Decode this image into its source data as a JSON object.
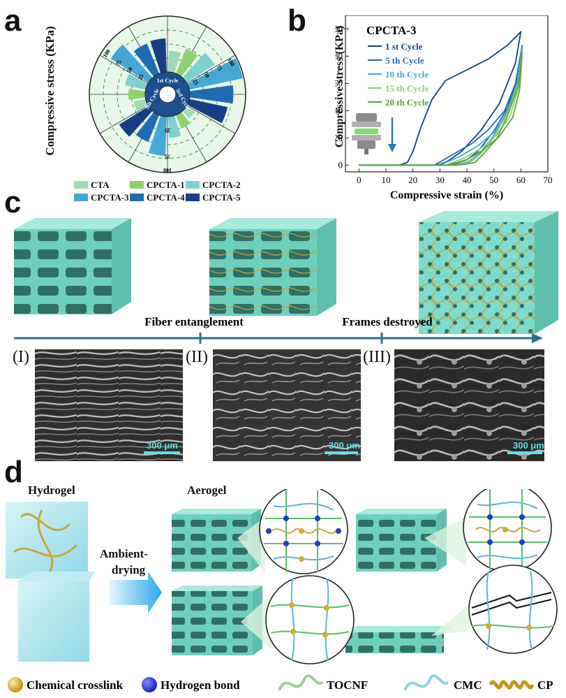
{
  "panels": {
    "a": {
      "letter": "a",
      "ylabel": "Compressive stress (KPa)",
      "center_labels": [
        "1st Cycle",
        "3rd Cycle",
        "5th Cycle"
      ],
      "tick_labels": [
        "100",
        "75",
        "50",
        "25"
      ],
      "legend": [
        {
          "name": "CTA",
          "color": "#9bdcb6"
        },
        {
          "name": "CPCTA-1",
          "color": "#8fd06f"
        },
        {
          "name": "CPCTA-2",
          "color": "#7fd1cf"
        },
        {
          "name": "CPCTA-3",
          "color": "#46a7d6"
        },
        {
          "name": "CPCTA-4",
          "color": "#1f6cb5"
        },
        {
          "name": "CPCTA-5",
          "color": "#163f86"
        }
      ]
    },
    "b": {
      "letter": "b",
      "title": "CPCTA-3",
      "xlabel": "Compressive strain (%)",
      "ylabel": "Compressive stress (KPa)",
      "x_ticks": [
        "0",
        "10",
        "20",
        "30",
        "40",
        "50",
        "60",
        "70"
      ],
      "y_ticks": [
        "0",
        "20",
        "40",
        "60",
        "80",
        "100"
      ]
    },
    "c": {
      "letter": "c",
      "arrow_labels": [
        "Fiber entanglement",
        "Frames destroyed"
      ],
      "sem": [
        {
          "label": "(I)",
          "scale": "300 μm"
        },
        {
          "label": "(II)",
          "scale": "300 μm"
        },
        {
          "label": "(III)",
          "scale": "300 μm"
        }
      ]
    },
    "d": {
      "letter": "d",
      "hydrogel": "Hydrogel",
      "aerogel": "Aerogel",
      "process_line1": "Ambient-",
      "process_line2": "drying",
      "legend": [
        "Chemical crosslink",
        "Hydrogen bond",
        "TOCNF",
        "CMC",
        "CP"
      ]
    }
  },
  "chart_data": [
    {
      "type": "bar",
      "polar": true,
      "title": "",
      "ylabel": "Compressive stress (KPa)",
      "ylim": [
        0,
        100
      ],
      "groups": [
        "1st Cycle",
        "3rd Cycle",
        "5th Cycle"
      ],
      "series": [
        {
          "name": "CTA",
          "values": [
            38,
            18,
            22
          ]
        },
        {
          "name": "CPCTA-1",
          "values": [
            48,
            26,
            30
          ]
        },
        {
          "name": "CPCTA-2",
          "values": [
            60,
            38,
            38
          ]
        },
        {
          "name": "CPCTA-3",
          "values": [
            98,
            70,
            80
          ]
        },
        {
          "name": "CPCTA-4",
          "values": [
            78,
            52,
            58
          ]
        },
        {
          "name": "CPCTA-5",
          "values": [
            70,
            62,
            60
          ]
        }
      ]
    },
    {
      "type": "line",
      "title": "CPCTA-3",
      "xlabel": "Compressive strain (%)",
      "ylabel": "Compressive stress (KPa)",
      "xlim": [
        -5,
        70
      ],
      "ylim": [
        -5,
        110
      ],
      "series": [
        {
          "name": "1 st Cycle",
          "color": "#163f86",
          "x": [
            0,
            15,
            18,
            20,
            23,
            27,
            32,
            40,
            48,
            55,
            60,
            58,
            52,
            45,
            38,
            33,
            30,
            28,
            26,
            0
          ],
          "y": [
            0,
            0,
            2,
            10,
            28,
            48,
            62,
            70,
            78,
            88,
            98,
            75,
            45,
            25,
            10,
            3,
            0.5,
            0,
            0,
            0
          ]
        },
        {
          "name": "5 th Cycle",
          "color": "#1f6cb5",
          "x": [
            0,
            28,
            35,
            42,
            48,
            54,
            58,
            60.5,
            59,
            55,
            50,
            44,
            40,
            36,
            33,
            0
          ],
          "y": [
            0,
            0,
            8,
            16,
            26,
            40,
            60,
            88,
            65,
            42,
            25,
            10,
            4,
            1,
            0,
            0
          ]
        },
        {
          "name": "10 th Cycle",
          "color": "#46a7d6",
          "x": [
            0,
            30,
            37,
            44,
            50,
            55,
            58.5,
            60.5,
            59,
            55,
            50,
            45,
            41,
            37,
            34,
            0
          ],
          "y": [
            0,
            0,
            6,
            14,
            24,
            38,
            58,
            86,
            62,
            40,
            22,
            9,
            3,
            0.5,
            0,
            0
          ]
        },
        {
          "name": "15 th Cycle",
          "color": "#8fd06f",
          "x": [
            0,
            32,
            39,
            45,
            51,
            56,
            59,
            60.5,
            59,
            55,
            50,
            45,
            42,
            38,
            35,
            0
          ],
          "y": [
            0,
            0,
            5,
            12,
            22,
            36,
            56,
            84,
            60,
            38,
            20,
            8,
            3,
            0.5,
            0,
            0
          ]
        },
        {
          "name": "20 th Cycle",
          "color": "#5ea13c",
          "x": [
            0,
            33,
            40,
            46,
            52,
            57,
            59.5,
            60.5,
            59,
            55,
            51,
            46,
            43,
            39,
            36,
            0
          ],
          "y": [
            0,
            0,
            4,
            11,
            21,
            35,
            55,
            83,
            58,
            36,
            19,
            8,
            2,
            0.5,
            0,
            0
          ]
        }
      ]
    }
  ]
}
